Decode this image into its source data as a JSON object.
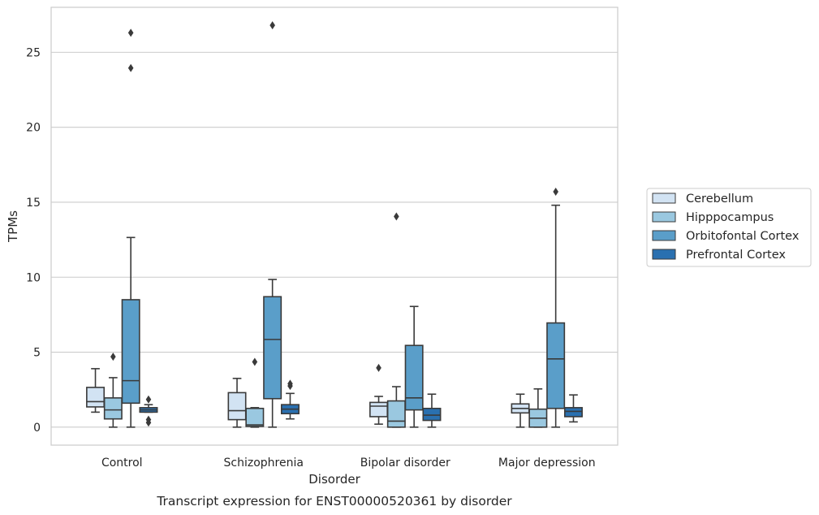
{
  "chart_data": {
    "type": "box",
    "caption": "Transcript expression for ENST00000520361 by disorder",
    "xlabel": "Disorder",
    "ylabel": "TPMs",
    "ylim": [
      -1.2,
      28
    ],
    "yticks": [
      0,
      5,
      10,
      15,
      20,
      25
    ],
    "grid": "horizontal",
    "legend_placement": "right",
    "categories": [
      "Control",
      "Schizophrenia",
      "Bipolar disorder",
      "Major depression"
    ],
    "series": [
      {
        "name": "Cerebellum",
        "color": "#d2e3f3",
        "boxes": [
          {
            "whisker_low": 1.0,
            "q1": 1.35,
            "median": 1.7,
            "q3": 2.65,
            "whisker_high": 3.9,
            "outliers": []
          },
          {
            "whisker_low": 0.0,
            "q1": 0.5,
            "median": 1.1,
            "q3": 2.3,
            "whisker_high": 3.25,
            "outliers": []
          },
          {
            "whisker_low": 0.2,
            "q1": 0.7,
            "median": 1.4,
            "q3": 1.65,
            "whisker_high": 2.05,
            "outliers": [
              3.95
            ]
          },
          {
            "whisker_low": 0.0,
            "q1": 0.95,
            "median": 1.25,
            "q3": 1.55,
            "whisker_high": 2.2,
            "outliers": []
          }
        ]
      },
      {
        "name": "Hipppocampus",
        "color": "#9ac8e0",
        "boxes": [
          {
            "whisker_low": 0.0,
            "q1": 0.55,
            "median": 1.15,
            "q3": 1.95,
            "whisker_high": 3.3,
            "outliers": [
              4.7
            ]
          },
          {
            "whisker_low": 0.0,
            "q1": 0.05,
            "median": 0.15,
            "q3": 1.25,
            "whisker_high": 1.3,
            "outliers": [
              4.35
            ]
          },
          {
            "whisker_low": 0.0,
            "q1": 0.0,
            "median": 0.4,
            "q3": 1.75,
            "whisker_high": 2.7,
            "outliers": [
              14.05
            ]
          },
          {
            "whisker_low": 0.0,
            "q1": 0.0,
            "median": 0.6,
            "q3": 1.2,
            "whisker_high": 2.55,
            "outliers": []
          }
        ]
      },
      {
        "name": "Orbitofontal Cortex",
        "color": "#5a9ec9",
        "boxes": [
          {
            "whisker_low": 0.0,
            "q1": 1.6,
            "median": 3.1,
            "q3": 8.5,
            "whisker_high": 12.65,
            "outliers": [
              23.95,
              26.3
            ]
          },
          {
            "whisker_low": 0.0,
            "q1": 1.9,
            "median": 5.85,
            "q3": 8.7,
            "whisker_high": 9.85,
            "outliers": [
              26.8
            ]
          },
          {
            "whisker_low": 0.0,
            "q1": 1.15,
            "median": 1.95,
            "q3": 5.45,
            "whisker_high": 8.05,
            "outliers": []
          },
          {
            "whisker_low": 0.0,
            "q1": 1.25,
            "median": 4.55,
            "q3": 6.95,
            "whisker_high": 14.8,
            "outliers": [
              15.7
            ]
          }
        ]
      },
      {
        "name": "Prefrontal Cortex",
        "color": "#2a70b0",
        "boxes": [
          {
            "whisker_low": 1.0,
            "q1": 1.0,
            "median": 1.15,
            "q3": 1.3,
            "whisker_high": 1.5,
            "outliers": [
              1.85,
              0.5,
              0.3
            ]
          },
          {
            "whisker_low": 0.55,
            "q1": 0.9,
            "median": 1.2,
            "q3": 1.5,
            "whisker_high": 2.25,
            "outliers": [
              2.75,
              2.9
            ]
          },
          {
            "whisker_low": 0.0,
            "q1": 0.45,
            "median": 0.8,
            "q3": 1.25,
            "whisker_high": 2.2,
            "outliers": []
          },
          {
            "whisker_low": 0.35,
            "q1": 0.7,
            "median": 1.05,
            "q3": 1.3,
            "whisker_high": 2.15,
            "outliers": []
          }
        ]
      }
    ]
  }
}
